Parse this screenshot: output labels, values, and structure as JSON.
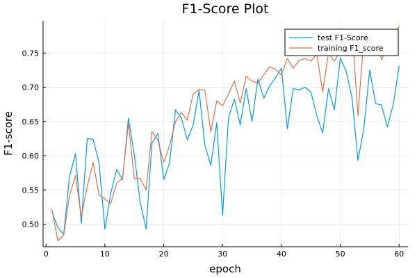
{
  "chart_data": {
    "type": "line",
    "title": "F1-Score Plot",
    "xlabel": "epoch",
    "ylabel": "F1-score",
    "xlim": [
      -0.5,
      61.5
    ],
    "ylim": [
      0.467,
      0.797
    ],
    "xticks": [
      0,
      10,
      20,
      30,
      40,
      50,
      60
    ],
    "yticks": [
      0.5,
      0.55,
      0.6,
      0.65,
      0.7,
      0.75
    ],
    "ytick_labels": [
      "0.50",
      "0.55",
      "0.60",
      "0.65",
      "0.70",
      "0.75"
    ],
    "grid": true,
    "legend_position": "top-right",
    "x": [
      1,
      2,
      3,
      4,
      5,
      6,
      7,
      8,
      9,
      10,
      11,
      12,
      13,
      14,
      15,
      16,
      17,
      18,
      19,
      20,
      21,
      22,
      23,
      24,
      25,
      26,
      27,
      28,
      29,
      30,
      31,
      32,
      33,
      34,
      35,
      36,
      37,
      38,
      39,
      40,
      41,
      42,
      43,
      44,
      45,
      46,
      47,
      48,
      49,
      50,
      51,
      52,
      53,
      54,
      55,
      56,
      57,
      58,
      59,
      60
    ],
    "series": [
      {
        "name": "test F1-Score",
        "color": "#009AFA",
        "values": [
          0.518,
          0.495,
          0.485,
          0.57,
          0.603,
          0.501,
          0.625,
          0.624,
          0.59,
          0.493,
          0.545,
          0.58,
          0.565,
          0.655,
          0.601,
          0.532,
          0.493,
          0.618,
          0.633,
          0.565,
          0.59,
          0.667,
          0.655,
          0.623,
          0.645,
          0.695,
          0.615,
          0.586,
          0.648,
          0.513,
          0.655,
          0.683,
          0.645,
          0.698,
          0.65,
          0.712,
          0.684,
          0.702,
          0.714,
          0.728,
          0.639,
          0.698,
          0.696,
          0.7,
          0.693,
          0.659,
          0.633,
          0.698,
          0.667,
          0.743,
          0.723,
          0.684,
          0.593,
          0.64,
          0.725,
          0.676,
          0.674,
          0.642,
          0.675,
          0.731
        ]
      },
      {
        "name": "training F1_score",
        "color": "#E26F46",
        "values": [
          0.522,
          0.476,
          0.484,
          0.542,
          0.571,
          0.511,
          0.555,
          0.59,
          0.543,
          0.537,
          0.53,
          0.56,
          0.567,
          0.647,
          0.567,
          0.567,
          0.55,
          0.635,
          0.623,
          0.59,
          0.615,
          0.65,
          0.663,
          0.652,
          0.69,
          0.697,
          0.695,
          0.635,
          0.68,
          0.673,
          0.69,
          0.709,
          0.677,
          0.716,
          0.709,
          0.706,
          0.718,
          0.73,
          0.726,
          0.718,
          0.742,
          0.728,
          0.739,
          0.742,
          0.738,
          0.749,
          0.693,
          0.75,
          0.738,
          0.754,
          0.775,
          0.784,
          0.658,
          0.772,
          0.767,
          0.78,
          0.74,
          0.76,
          0.762,
          0.79
        ]
      }
    ]
  }
}
